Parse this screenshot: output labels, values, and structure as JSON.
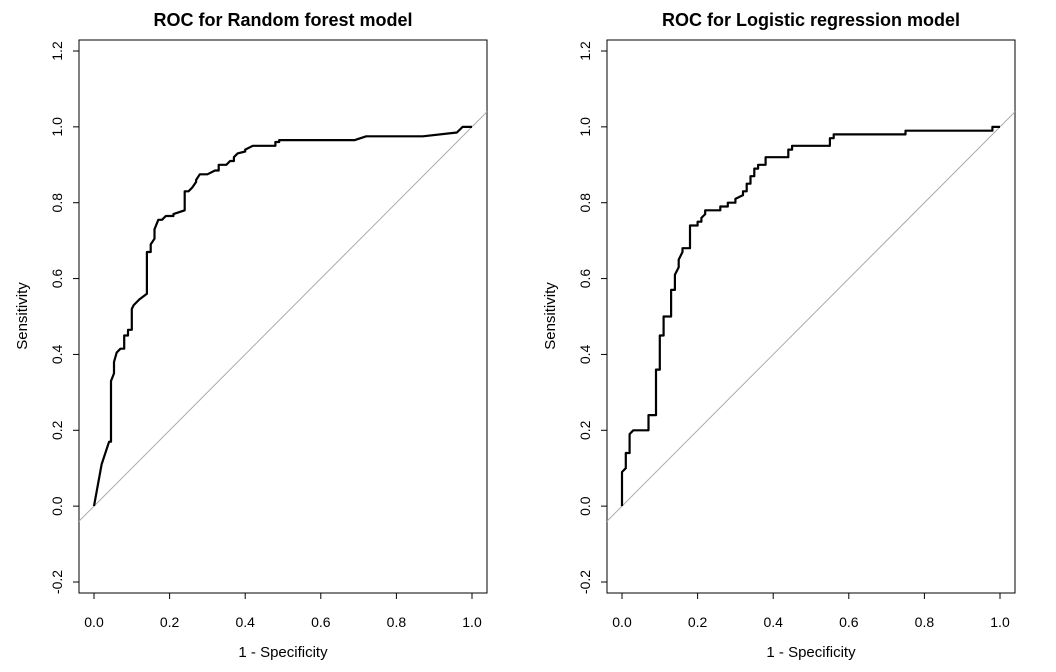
{
  "chart_data": [
    {
      "type": "line",
      "title": "ROC for Random forest model",
      "xlabel": "1 - Specificity",
      "ylabel": "Sensitivity",
      "xlim": [
        0.0,
        1.0
      ],
      "ylim": [
        -0.2,
        1.2
      ],
      "xticks": [
        "0.0",
        "0.2",
        "0.4",
        "0.6",
        "0.8",
        "1.0"
      ],
      "yticks": [
        "-0.2",
        "0.0",
        "0.2",
        "0.4",
        "0.6",
        "0.8",
        "1.0",
        "1.2"
      ],
      "grid": false,
      "reference_line": "diagonal",
      "series": [
        {
          "x": [
            0.0,
            0.02,
            0.04,
            0.045,
            0.045,
            0.053,
            0.053,
            0.06,
            0.07,
            0.08,
            0.08,
            0.09,
            0.09,
            0.1,
            0.1,
            0.105,
            0.12,
            0.14,
            0.14,
            0.15,
            0.15,
            0.16,
            0.16,
            0.17,
            0.18,
            0.19,
            0.2,
            0.21,
            0.21,
            0.24,
            0.24,
            0.25,
            0.26,
            0.27,
            0.27,
            0.28,
            0.3,
            0.32,
            0.33,
            0.33,
            0.35,
            0.36,
            0.37,
            0.37,
            0.38,
            0.4,
            0.4,
            0.42,
            0.48,
            0.48,
            0.49,
            0.49,
            0.69,
            0.72,
            0.73,
            0.87,
            0.96,
            0.975,
            1.0
          ],
          "y": [
            0.0,
            0.11,
            0.17,
            0.17,
            0.33,
            0.35,
            0.38,
            0.405,
            0.415,
            0.415,
            0.45,
            0.45,
            0.465,
            0.465,
            0.52,
            0.53,
            0.545,
            0.56,
            0.67,
            0.67,
            0.69,
            0.705,
            0.73,
            0.755,
            0.755,
            0.765,
            0.765,
            0.765,
            0.77,
            0.78,
            0.83,
            0.83,
            0.84,
            0.855,
            0.86,
            0.875,
            0.875,
            0.885,
            0.885,
            0.9,
            0.9,
            0.91,
            0.91,
            0.92,
            0.93,
            0.935,
            0.94,
            0.95,
            0.95,
            0.96,
            0.96,
            0.965,
            0.965,
            0.975,
            0.975,
            0.975,
            0.985,
            1.0,
            1.0
          ]
        }
      ]
    },
    {
      "type": "line",
      "title": "ROC for Logistic regression model",
      "xlabel": "1 - Specificity",
      "ylabel": "Sensitivity",
      "xlim": [
        0.0,
        1.0
      ],
      "ylim": [
        -0.2,
        1.2
      ],
      "xticks": [
        "0.0",
        "0.2",
        "0.4",
        "0.6",
        "0.8",
        "1.0"
      ],
      "yticks": [
        "-0.2",
        "0.0",
        "0.2",
        "0.4",
        "0.6",
        "0.8",
        "1.0",
        "1.2"
      ],
      "grid": false,
      "reference_line": "diagonal",
      "series": [
        {
          "x": [
            0.0,
            0.0,
            0.01,
            0.01,
            0.02,
            0.02,
            0.03,
            0.03,
            0.07,
            0.07,
            0.09,
            0.09,
            0.1,
            0.1,
            0.11,
            0.11,
            0.13,
            0.13,
            0.14,
            0.14,
            0.15,
            0.15,
            0.16,
            0.16,
            0.18,
            0.18,
            0.2,
            0.2,
            0.21,
            0.21,
            0.22,
            0.22,
            0.26,
            0.26,
            0.28,
            0.28,
            0.3,
            0.3,
            0.32,
            0.32,
            0.33,
            0.33,
            0.34,
            0.34,
            0.35,
            0.35,
            0.36,
            0.36,
            0.38,
            0.38,
            0.4,
            0.4,
            0.44,
            0.44,
            0.45,
            0.45,
            0.55,
            0.55,
            0.56,
            0.56,
            0.75,
            0.75,
            0.98,
            0.98,
            1.0
          ],
          "y": [
            0.0,
            0.09,
            0.1,
            0.14,
            0.14,
            0.19,
            0.2,
            0.2,
            0.2,
            0.24,
            0.24,
            0.36,
            0.36,
            0.45,
            0.45,
            0.5,
            0.5,
            0.57,
            0.57,
            0.61,
            0.63,
            0.65,
            0.67,
            0.68,
            0.68,
            0.74,
            0.74,
            0.75,
            0.75,
            0.76,
            0.77,
            0.78,
            0.78,
            0.79,
            0.79,
            0.8,
            0.8,
            0.81,
            0.82,
            0.83,
            0.83,
            0.85,
            0.85,
            0.87,
            0.87,
            0.89,
            0.89,
            0.9,
            0.9,
            0.92,
            0.92,
            0.92,
            0.92,
            0.94,
            0.94,
            0.95,
            0.95,
            0.97,
            0.97,
            0.98,
            0.98,
            0.99,
            0.99,
            1.0,
            1.0
          ]
        }
      ]
    }
  ]
}
